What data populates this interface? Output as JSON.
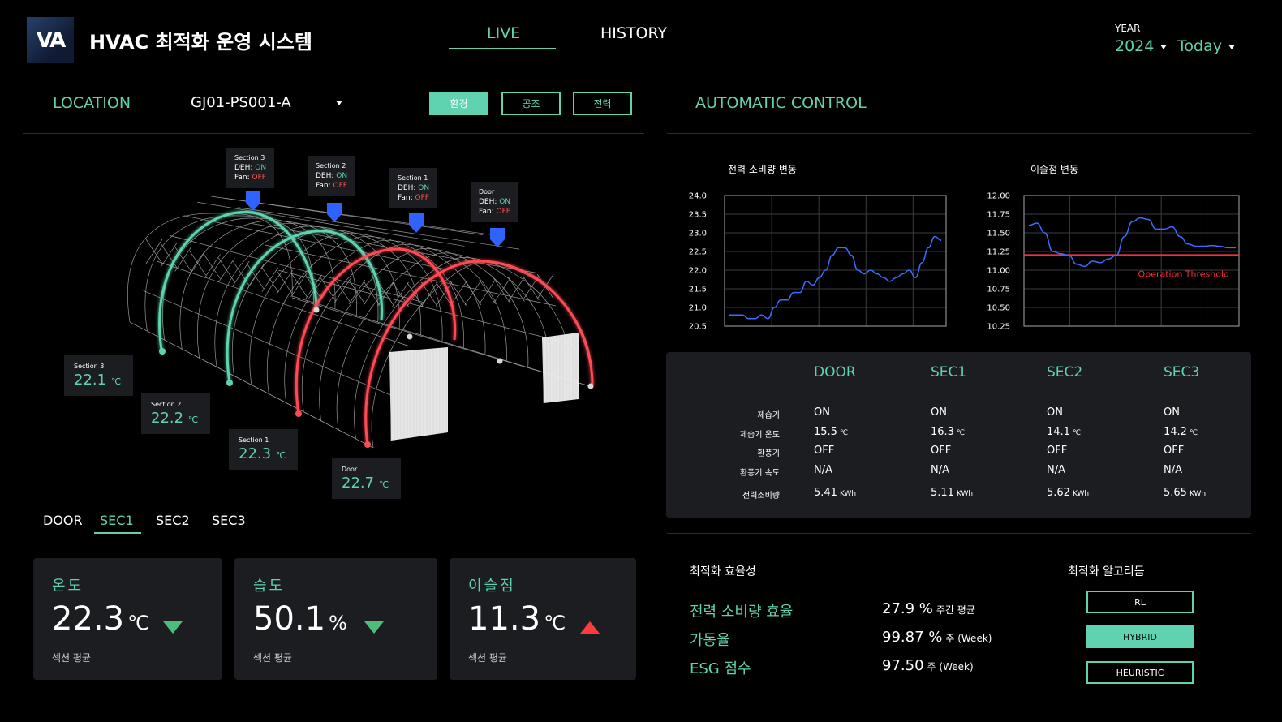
{
  "header": {
    "logo_text": "VA",
    "app_title": "HVAC 최적화 운영 시스템",
    "tabs": [
      {
        "label": "LIVE",
        "active": true
      },
      {
        "label": "HISTORY",
        "active": false
      }
    ],
    "year_label": "YEAR",
    "year_value": "2024",
    "period_value": "Today"
  },
  "location": {
    "label": "LOCATION",
    "value": "GJ01-PS001-A",
    "chips": [
      {
        "label": "환경",
        "active": true
      },
      {
        "label": "공조",
        "active": false
      },
      {
        "label": "전력",
        "active": false
      }
    ]
  },
  "tunnel": {
    "tooltips": [
      {
        "title": "Section 3",
        "deh_label": "DEH:",
        "deh": "ON",
        "fan_label": "Fan:",
        "fan": "OFF"
      },
      {
        "title": "Section 2",
        "deh_label": "DEH:",
        "deh": "ON",
        "fan_label": "Fan:",
        "fan": "OFF"
      },
      {
        "title": "Section 1",
        "deh_label": "DEH:",
        "deh": "ON",
        "fan_label": "Fan:",
        "fan": "OFF"
      },
      {
        "title": "Door",
        "deh_label": "DEH:",
        "deh": "ON",
        "fan_label": "Fan:",
        "fan": "OFF"
      }
    ],
    "section_temps": [
      {
        "label": "Section 3",
        "value": "22.1",
        "unit": "℃"
      },
      {
        "label": "Section 2",
        "value": "22.2",
        "unit": "℃"
      },
      {
        "label": "Section 1",
        "value": "22.3",
        "unit": "℃"
      },
      {
        "label": "Door",
        "value": "22.7",
        "unit": "℃"
      }
    ]
  },
  "section_tabs": [
    {
      "label": "DOOR",
      "active": false
    },
    {
      "label": "SEC1",
      "active": true
    },
    {
      "label": "SEC2",
      "active": false
    },
    {
      "label": "SEC3",
      "active": false
    }
  ],
  "cards": [
    {
      "caption": "온도",
      "value": "22.3",
      "unit": "℃",
      "footer": "섹션 평균",
      "trend": "down"
    },
    {
      "caption": "습도",
      "value": "50.1",
      "unit": "%",
      "footer": "섹션 평균",
      "trend": "down"
    },
    {
      "caption": "이슬점",
      "value": "11.3",
      "unit": "℃",
      "footer": "섹션 평균",
      "trend": "up"
    }
  ],
  "automatic_control": {
    "title": "AUTOMATIC CONTROL",
    "power_chart": {
      "title": "전력 소비량 변동",
      "yticks": [
        "24.0",
        "23.5",
        "23.0",
        "22.5",
        "22.0",
        "21.5",
        "21.0",
        "20.5"
      ]
    },
    "dew_chart": {
      "title": "이슬점 변동",
      "yticks": [
        "12.00",
        "11.75",
        "11.50",
        "11.25",
        "11.00",
        "10.75",
        "10.50",
        "10.25"
      ],
      "threshold_label": "Operation Threshold"
    },
    "status_table": {
      "columns": [
        "DOOR",
        "SEC1",
        "SEC2",
        "SEC3"
      ],
      "rows": [
        {
          "label": "제습기",
          "values": [
            {
              "v": "ON",
              "c": "green"
            },
            {
              "v": "ON",
              "c": "green"
            },
            {
              "v": "ON",
              "c": "green"
            },
            {
              "v": "ON",
              "c": "green"
            }
          ]
        },
        {
          "label": "제습기 온도",
          "values": [
            {
              "v": "15.5",
              "u": "℃"
            },
            {
              "v": "16.3",
              "u": "℃"
            },
            {
              "v": "14.1",
              "u": "℃"
            },
            {
              "v": "14.2",
              "u": "℃"
            }
          ]
        },
        {
          "label": "환풍기",
          "values": [
            {
              "v": "OFF",
              "c": "red"
            },
            {
              "v": "OFF",
              "c": "red"
            },
            {
              "v": "OFF",
              "c": "red"
            },
            {
              "v": "OFF",
              "c": "red"
            }
          ]
        },
        {
          "label": "환풍기 속도",
          "values": [
            {
              "v": "N/A"
            },
            {
              "v": "N/A"
            },
            {
              "v": "N/A"
            },
            {
              "v": "N/A"
            }
          ]
        },
        {
          "label": "전력소비량",
          "values": [
            {
              "v": "5.41",
              "u": "KWh"
            },
            {
              "v": "5.11",
              "u": "KWh"
            },
            {
              "v": "5.62",
              "u": "KWh"
            },
            {
              "v": "5.65",
              "u": "KWh"
            }
          ]
        }
      ]
    }
  },
  "chart_data": [
    {
      "type": "line",
      "title": "전력 소비량 변동",
      "ylim": [
        20.5,
        24.0
      ],
      "yticks": [
        24.0,
        23.5,
        23.0,
        22.5,
        22.0,
        21.5,
        21.0,
        20.5
      ],
      "grid": true,
      "series": [
        {
          "values": [
            20.8,
            20.8,
            20.8,
            20.7,
            20.7,
            20.8,
            20.7,
            21.0,
            21.2,
            21.2,
            21.4,
            21.4,
            21.7,
            21.6,
            21.8,
            22.0,
            22.4,
            22.6,
            22.6,
            22.4,
            22.0,
            21.9,
            22.0,
            21.9,
            21.8,
            21.7,
            21.8,
            21.9,
            22.0,
            21.8,
            22.2,
            22.6,
            22.9,
            22.8
          ]
        }
      ]
    },
    {
      "type": "line",
      "title": "이슬점 변동",
      "ylim": [
        10.25,
        12.0
      ],
      "yticks": [
        12.0,
        11.75,
        11.5,
        11.25,
        11.0,
        10.75,
        10.5,
        10.25
      ],
      "grid": true,
      "threshold": {
        "value": 11.2,
        "label": "Operation Threshold"
      },
      "series": [
        {
          "values": [
            11.6,
            11.63,
            11.5,
            11.25,
            11.22,
            11.2,
            11.08,
            11.05,
            11.12,
            11.1,
            11.15,
            11.2,
            11.45,
            11.65,
            11.7,
            11.68,
            11.55,
            11.55,
            11.58,
            11.45,
            11.35,
            11.32,
            11.32,
            11.33,
            11.32,
            11.3,
            11.3
          ]
        }
      ]
    }
  ],
  "optimization": {
    "efficiency_title": "최적화 효율성",
    "metrics": [
      {
        "label": "전력 소비량 효율",
        "value": "27.9 %",
        "note": "주간 평균"
      },
      {
        "label": "가동율",
        "value": "99.87 %",
        "note": "주 (Week)"
      },
      {
        "label": "ESG 점수",
        "value": "97.50",
        "note": "주 (Week)"
      }
    ],
    "algo_title": "최적화 알고리듬",
    "algorithms": [
      {
        "label": "RL",
        "active": false
      },
      {
        "label": "HYBRID",
        "active": true
      },
      {
        "label": "HEURISTIC",
        "active": false
      }
    ]
  },
  "colors": {
    "accent": "#5fd3b0",
    "alert": "#ff4f4f",
    "panel": "#1b1d21",
    "line": "#3a6cff"
  }
}
